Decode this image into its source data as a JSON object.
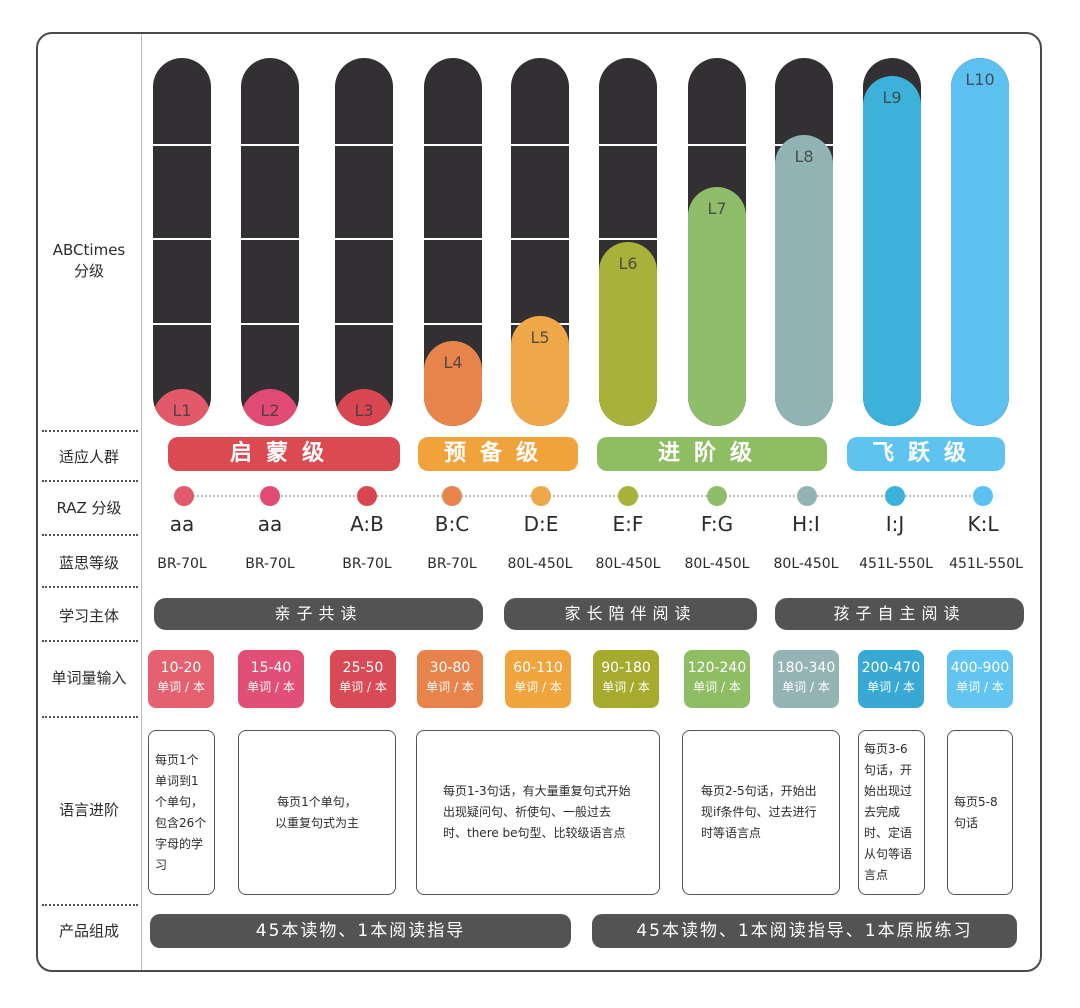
{
  "rows": {
    "abctimes": "ABCtimes\n分级",
    "audience": "适应人群",
    "raz": "RAZ 分级",
    "lexile": "蓝思等级",
    "subject": "学习主体",
    "vocab": "单词量输入",
    "language": "语言进阶",
    "product": "产品组成"
  },
  "levels": [
    {
      "level": "L1",
      "fill": 0.1,
      "color": "#e2596a",
      "raz": "aa",
      "lexile": "BR-70L",
      "vocab": "10-20",
      "vocab_color": "#e66170"
    },
    {
      "level": "L2",
      "fill": 0.1,
      "color": "#e14a73",
      "raz": "aa",
      "lexile": "BR-70L",
      "vocab": "15-40",
      "vocab_color": "#e24f75"
    },
    {
      "level": "L3",
      "fill": 0.1,
      "color": "#d94652",
      "raz": "A:B",
      "lexile": "BR-70L",
      "vocab": "25-50",
      "vocab_color": "#d84a55"
    },
    {
      "level": "L4",
      "fill": 0.23,
      "color": "#e8834b",
      "raz": "B:C",
      "lexile": "BR-70L",
      "vocab": "30-80",
      "vocab_color": "#e8834b"
    },
    {
      "level": "L5",
      "fill": 0.3,
      "color": "#eea84a",
      "raz": "D:E",
      "lexile": "80L-450L",
      "vocab": "60-110",
      "vocab_color": "#efa43d"
    },
    {
      "level": "L6",
      "fill": 0.5,
      "color": "#a8b23b",
      "raz": "E:F",
      "lexile": "80L-450L",
      "vocab": "90-180",
      "vocab_color": "#a6ab2e"
    },
    {
      "level": "L7",
      "fill": 0.65,
      "color": "#8fbd6a",
      "raz": "F:G",
      "lexile": "80L-450L",
      "vocab": "120-240",
      "vocab_color": "#8ebd63"
    },
    {
      "level": "L8",
      "fill": 0.79,
      "color": "#92b3b4",
      "raz": "H:I",
      "lexile": "80L-450L",
      "vocab": "180-340",
      "vocab_color": "#93b3b4"
    },
    {
      "level": "L9",
      "fill": 0.95,
      "color": "#3cb1d9",
      "raz": "I:J",
      "lexile": "451L-550L",
      "vocab": "200-470",
      "vocab_color": "#38a9d4"
    },
    {
      "level": "L10",
      "fill": 1.0,
      "color": "#5cc0f0",
      "raz": "K:L",
      "lexile": "451L-550L",
      "vocab": "400-900",
      "vocab_color": "#62c5f1"
    }
  ],
  "vocab_unit": "单词 / 本",
  "audience": [
    {
      "label": "启蒙级",
      "color": "#db4a50"
    },
    {
      "label": "预备级",
      "color": "#f2a23a"
    },
    {
      "label": "进阶级",
      "color": "#8fbd62"
    },
    {
      "label": "飞跃级",
      "color": "#5ec3ef"
    }
  ],
  "subjects": [
    "亲子共读",
    "家长陪伴阅读",
    "孩子自主阅读"
  ],
  "language": [
    "每页1个单词到1个单句，包含26个字母的学习",
    "每页1个单句，以重复句式为主",
    "每页1-3句话，有大量重复句式开始出现疑问句、祈使句、一般过去时、there be句型、比较级语言点",
    "每页2-5句话，开始出现if条件句、过去进行时等语言点",
    "每页3-6句话，开始出现过去完成时、定语从句等语言点",
    "每页5-8句话"
  ],
  "products": [
    "45本读物、1本阅读指导",
    "45本读物、1本阅读指导、1本原版练习"
  ]
}
